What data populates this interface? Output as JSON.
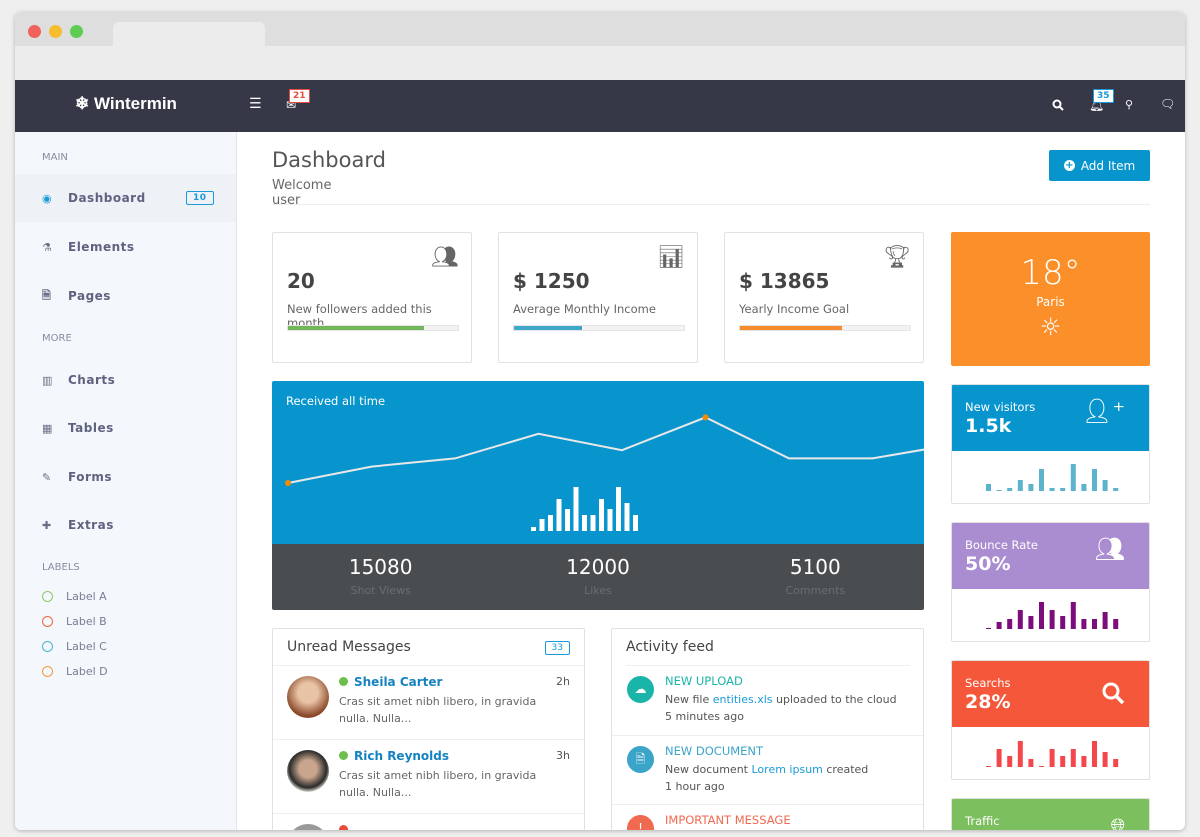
{
  "brand": "Wintermin",
  "navbar": {
    "mail_badge": "21",
    "notif_badge": "35"
  },
  "sidebar": {
    "main_header": "MAIN",
    "more_header": "MORE",
    "labels_header": "LABELS",
    "main_items": [
      {
        "label": "Dashboard",
        "icon": "target-icon",
        "badge": "10"
      },
      {
        "label": "Elements",
        "icon": "flask-icon"
      },
      {
        "label": "Pages",
        "icon": "file-icon"
      }
    ],
    "more_items": [
      {
        "label": "Charts",
        "icon": "bar-chart-icon"
      },
      {
        "label": "Tables",
        "icon": "table-icon"
      },
      {
        "label": "Forms",
        "icon": "edit-icon"
      },
      {
        "label": "Extras",
        "icon": "plus-icon"
      }
    ],
    "labels": [
      {
        "label": "Label A",
        "color": "#8cc96a"
      },
      {
        "label": "Label B",
        "color": "#f0643c"
      },
      {
        "label": "Label C",
        "color": "#4bb5d0"
      },
      {
        "label": "Label D",
        "color": "#f39a3c"
      }
    ]
  },
  "header": {
    "title": "Dashboard",
    "subtitle": "Welcome user",
    "add_button": "Add Item"
  },
  "stats": [
    {
      "value": "20",
      "label": "New followers added this month",
      "progress": 0.8,
      "color": "#72b65a",
      "icon": "users-icon"
    },
    {
      "value": "$ 1250",
      "label": "Average Monthly Income",
      "progress": 0.4,
      "color": "#3fa8c9",
      "icon": "chart-icon"
    },
    {
      "value": "$ 13865",
      "label": "Yearly Income Goal",
      "progress": 0.6,
      "color": "#f58a2c",
      "icon": "trophy-icon"
    }
  ],
  "received": {
    "title": "Received all time",
    "line": [
      10,
      14,
      16,
      22,
      18,
      26,
      16,
      16,
      19.5
    ],
    "highlighted_points": [
      0,
      5
    ],
    "bars": [
      1,
      3,
      4,
      8,
      5.5,
      11,
      4,
      4,
      8,
      5.5,
      11,
      7,
      4
    ],
    "totals": [
      {
        "value": "15080",
        "label": "Shot Views"
      },
      {
        "value": "12000",
        "label": "Likes"
      },
      {
        "value": "5100",
        "label": "Comments"
      }
    ]
  },
  "weather": {
    "temp": "18°",
    "city": "Paris",
    "icon": "sun-icon",
    "color": "#fb8f2a"
  },
  "tiles": [
    {
      "title": "New visitors",
      "value": "1.5k",
      "icon": "user-plus-icon",
      "color": "#0895cd",
      "bar_color": "#5bb3cc",
      "bars": [
        7,
        1,
        3,
        11,
        7,
        22,
        3,
        3,
        27,
        7,
        22,
        11,
        3
      ]
    },
    {
      "title": "Bounce Rate",
      "value": "50%",
      "icon": "users-icon",
      "color": "#a98dd0",
      "bar_color": "#7c0d7c",
      "bars": [
        1,
        7,
        10,
        19,
        13,
        27,
        19,
        13,
        27,
        10,
        10,
        17,
        10
      ]
    },
    {
      "title": "Searchs",
      "value": "28%",
      "icon": "search-icon",
      "color": "#f4573a",
      "bar_color": "#f4474c",
      "bars": [
        1,
        18,
        11,
        26,
        8,
        1,
        18,
        11,
        18,
        11,
        26,
        15,
        8
      ]
    },
    {
      "title": "Traffic",
      "icon": "globe-icon",
      "color": "#7cbf5e"
    }
  ],
  "messages": {
    "title": "Unread Messages",
    "count": "33",
    "items": [
      {
        "name": "Sheila Carter",
        "time": "2h",
        "text": "Cras sit amet nibh libero, in gravida nulla. Nulla...",
        "status": "#6cbf4a"
      },
      {
        "name": "Rich Reynolds",
        "time": "3h",
        "text": "Cras sit amet nibh libero, in gravida nulla. Nulla...",
        "status": "#6cbf4a"
      }
    ]
  },
  "activity": {
    "title": "Activity feed",
    "items": [
      {
        "head": "NEW UPLOAD",
        "pre": "New file ",
        "link": "entities.xls",
        "post": " uploaded to the cloud",
        "time": "5 minutes ago",
        "color": "#1ab5a8",
        "icon": "cloud-upload-icon"
      },
      {
        "head": "NEW DOCUMENT",
        "pre": "New document ",
        "link": "Lorem ipsum",
        "post": " created",
        "time": "1 hour ago",
        "color": "#3aa4c9",
        "icon": "document-icon"
      },
      {
        "head": "IMPORTANT MESSAGE",
        "color": "#f06a50",
        "icon": "alert-icon"
      }
    ]
  }
}
